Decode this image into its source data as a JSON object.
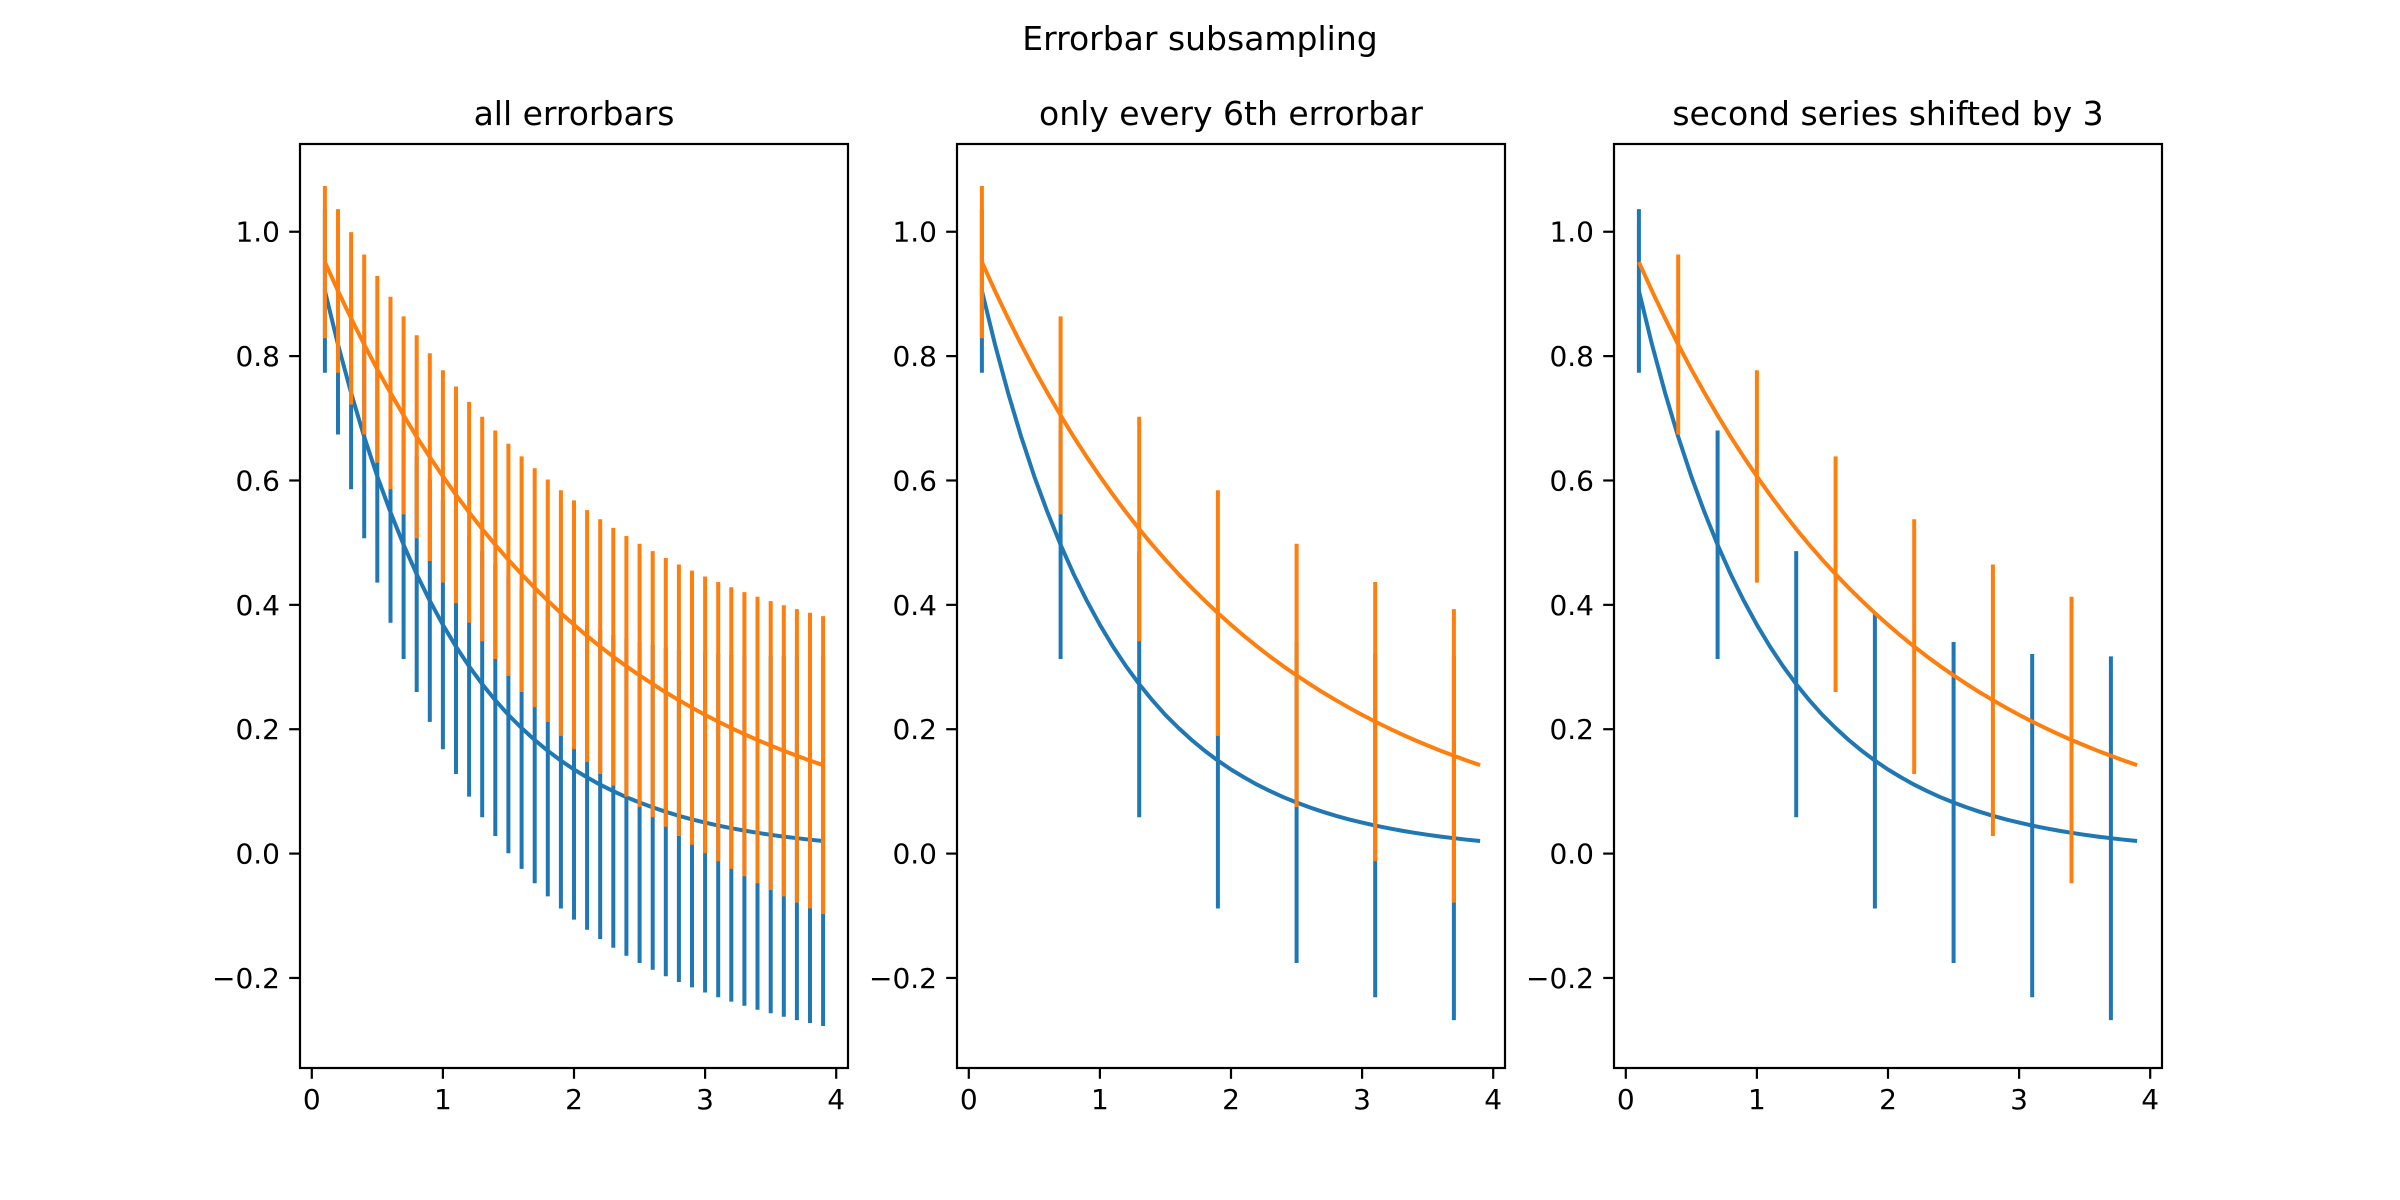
{
  "chart_data": {
    "type": "line",
    "suptitle": "Errorbar subsampling",
    "background_color": "#ffffff",
    "grid": false,
    "x": [
      0.1,
      0.2,
      0.3,
      0.4,
      0.5,
      0.6,
      0.7,
      0.8,
      0.9,
      1.0,
      1.1,
      1.2,
      1.3,
      1.4,
      1.5,
      1.6,
      1.7,
      1.8,
      1.9,
      2.0,
      2.1,
      2.2,
      2.3,
      2.4,
      2.5,
      2.6,
      2.7,
      2.8,
      2.9,
      3.0,
      3.1,
      3.2,
      3.3,
      3.4,
      3.5,
      3.6,
      3.7,
      3.8,
      3.9
    ],
    "series": [
      {
        "id": "series1-blue",
        "color": "#1f77b4",
        "values": [
          0.9048,
          0.8187,
          0.7408,
          0.6703,
          0.6065,
          0.5488,
          0.4966,
          0.4493,
          0.4066,
          0.3679,
          0.3329,
          0.3012,
          0.2725,
          0.2466,
          0.2231,
          0.2019,
          0.1827,
          0.1653,
          0.1496,
          0.1353,
          0.1225,
          0.1108,
          0.1003,
          0.0907,
          0.0821,
          0.0743,
          0.0672,
          0.0608,
          0.055,
          0.0498,
          0.045,
          0.0408,
          0.0369,
          0.0334,
          0.0302,
          0.0273,
          0.0247,
          0.0224,
          0.0202
        ],
        "yerr": [
          0.1316,
          0.1447,
          0.1548,
          0.1632,
          0.1707,
          0.1775,
          0.1837,
          0.1894,
          0.1949,
          0.2,
          0.2049,
          0.2095,
          0.214,
          0.2183,
          0.2225,
          0.2265,
          0.2304,
          0.2342,
          0.2379,
          0.2414,
          0.2449,
          0.2483,
          0.2517,
          0.2549,
          0.2581,
          0.2612,
          0.2643,
          0.2673,
          0.2702,
          0.2732,
          0.276,
          0.2789,
          0.2817,
          0.2844,
          0.2871,
          0.2897,
          0.2924,
          0.2949,
          0.2975
        ]
      },
      {
        "id": "series2-orange",
        "color": "#ff7f0e",
        "values": [
          0.9512,
          0.9048,
          0.8607,
          0.8187,
          0.7788,
          0.7408,
          0.7047,
          0.6703,
          0.6376,
          0.6065,
          0.5769,
          0.5488,
          0.522,
          0.4966,
          0.4724,
          0.4493,
          0.4274,
          0.4066,
          0.3867,
          0.3679,
          0.3499,
          0.3329,
          0.3166,
          0.3012,
          0.2865,
          0.2725,
          0.2592,
          0.2466,
          0.2346,
          0.2231,
          0.2122,
          0.2019,
          0.192,
          0.1827,
          0.1738,
          0.1653,
          0.1572,
          0.1496,
          0.1423
        ],
        "yerr": [
          0.1224,
          0.1316,
          0.1387,
          0.1447,
          0.15,
          0.1548,
          0.1592,
          0.1632,
          0.1671,
          0.1707,
          0.1742,
          0.1775,
          0.1806,
          0.1837,
          0.1866,
          0.1894,
          0.1922,
          0.1949,
          0.1975,
          0.2,
          0.2025,
          0.2049,
          0.2072,
          0.2095,
          0.2118,
          0.214,
          0.2162,
          0.2183,
          0.2204,
          0.2225,
          0.2245,
          0.2265,
          0.2285,
          0.2304,
          0.2323,
          0.2342,
          0.236,
          0.2378,
          0.2396
        ]
      }
    ],
    "subplots": [
      {
        "title": "all errorbars",
        "errorevery": [
          [
            0,
            1
          ],
          [
            0,
            1
          ]
        ]
      },
      {
        "title": "only every 6th errorbar",
        "errorevery": [
          [
            0,
            6
          ],
          [
            0,
            6
          ]
        ]
      },
      {
        "title": "second series shifted by 3",
        "errorevery": [
          [
            0,
            6
          ],
          [
            3,
            6
          ]
        ]
      }
    ],
    "xlim": [
      -0.09,
      4.09
    ],
    "ylim": [
      -0.3448,
      1.1411
    ],
    "xticks": [
      0,
      1,
      2,
      3,
      4
    ],
    "xtick_labels": [
      "0",
      "1",
      "2",
      "3",
      "4"
    ],
    "yticks": [
      -0.2,
      0.0,
      0.2,
      0.4,
      0.6,
      0.8,
      1.0
    ],
    "ytick_labels": [
      "−0.2",
      "0.0",
      "0.2",
      "0.4",
      "0.6",
      "0.8",
      "1.0"
    ],
    "axis_color": "#000000"
  }
}
